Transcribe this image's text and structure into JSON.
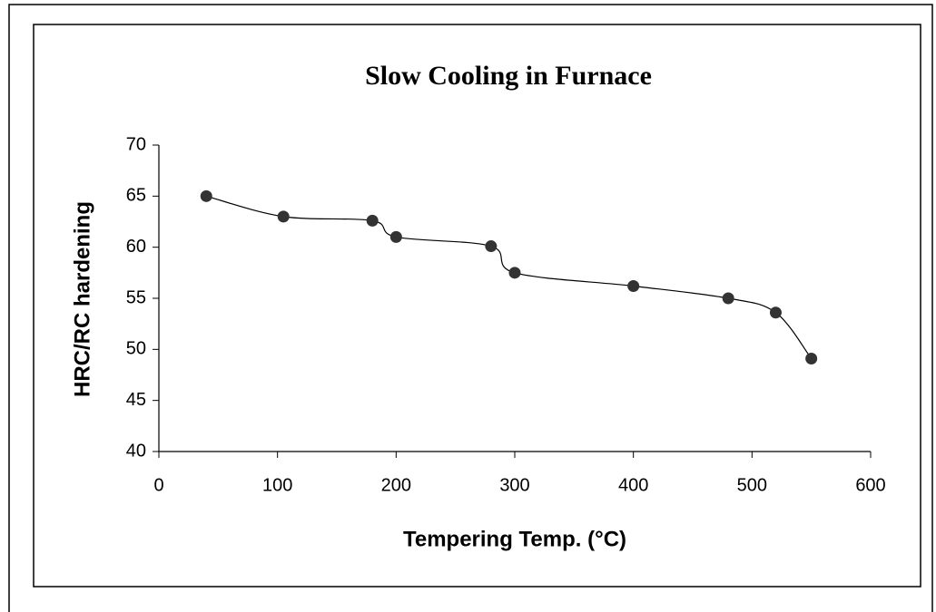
{
  "chart_data": {
    "type": "line",
    "title": "Slow Cooling in Furnace",
    "x_label": "Tempering Temp. (°C)",
    "y_label": "HRC/RC hardening",
    "x": [
      40,
      105,
      180,
      200,
      280,
      300,
      400,
      480,
      520,
      550
    ],
    "series": [
      {
        "name": "HRC/RC hardening",
        "color": "#000000",
        "values": [
          65,
          63,
          62.6,
          61,
          60.1,
          57.5,
          56.2,
          55,
          53.6,
          49.1
        ]
      }
    ],
    "xlim": [
      0,
      600
    ],
    "xticks": [
      0,
      100,
      200,
      300,
      400,
      500,
      600
    ],
    "ylim": [
      40,
      70
    ],
    "yticks": [
      40,
      45,
      50,
      55,
      60,
      65,
      70
    ],
    "smooth": true,
    "grid": false
  }
}
